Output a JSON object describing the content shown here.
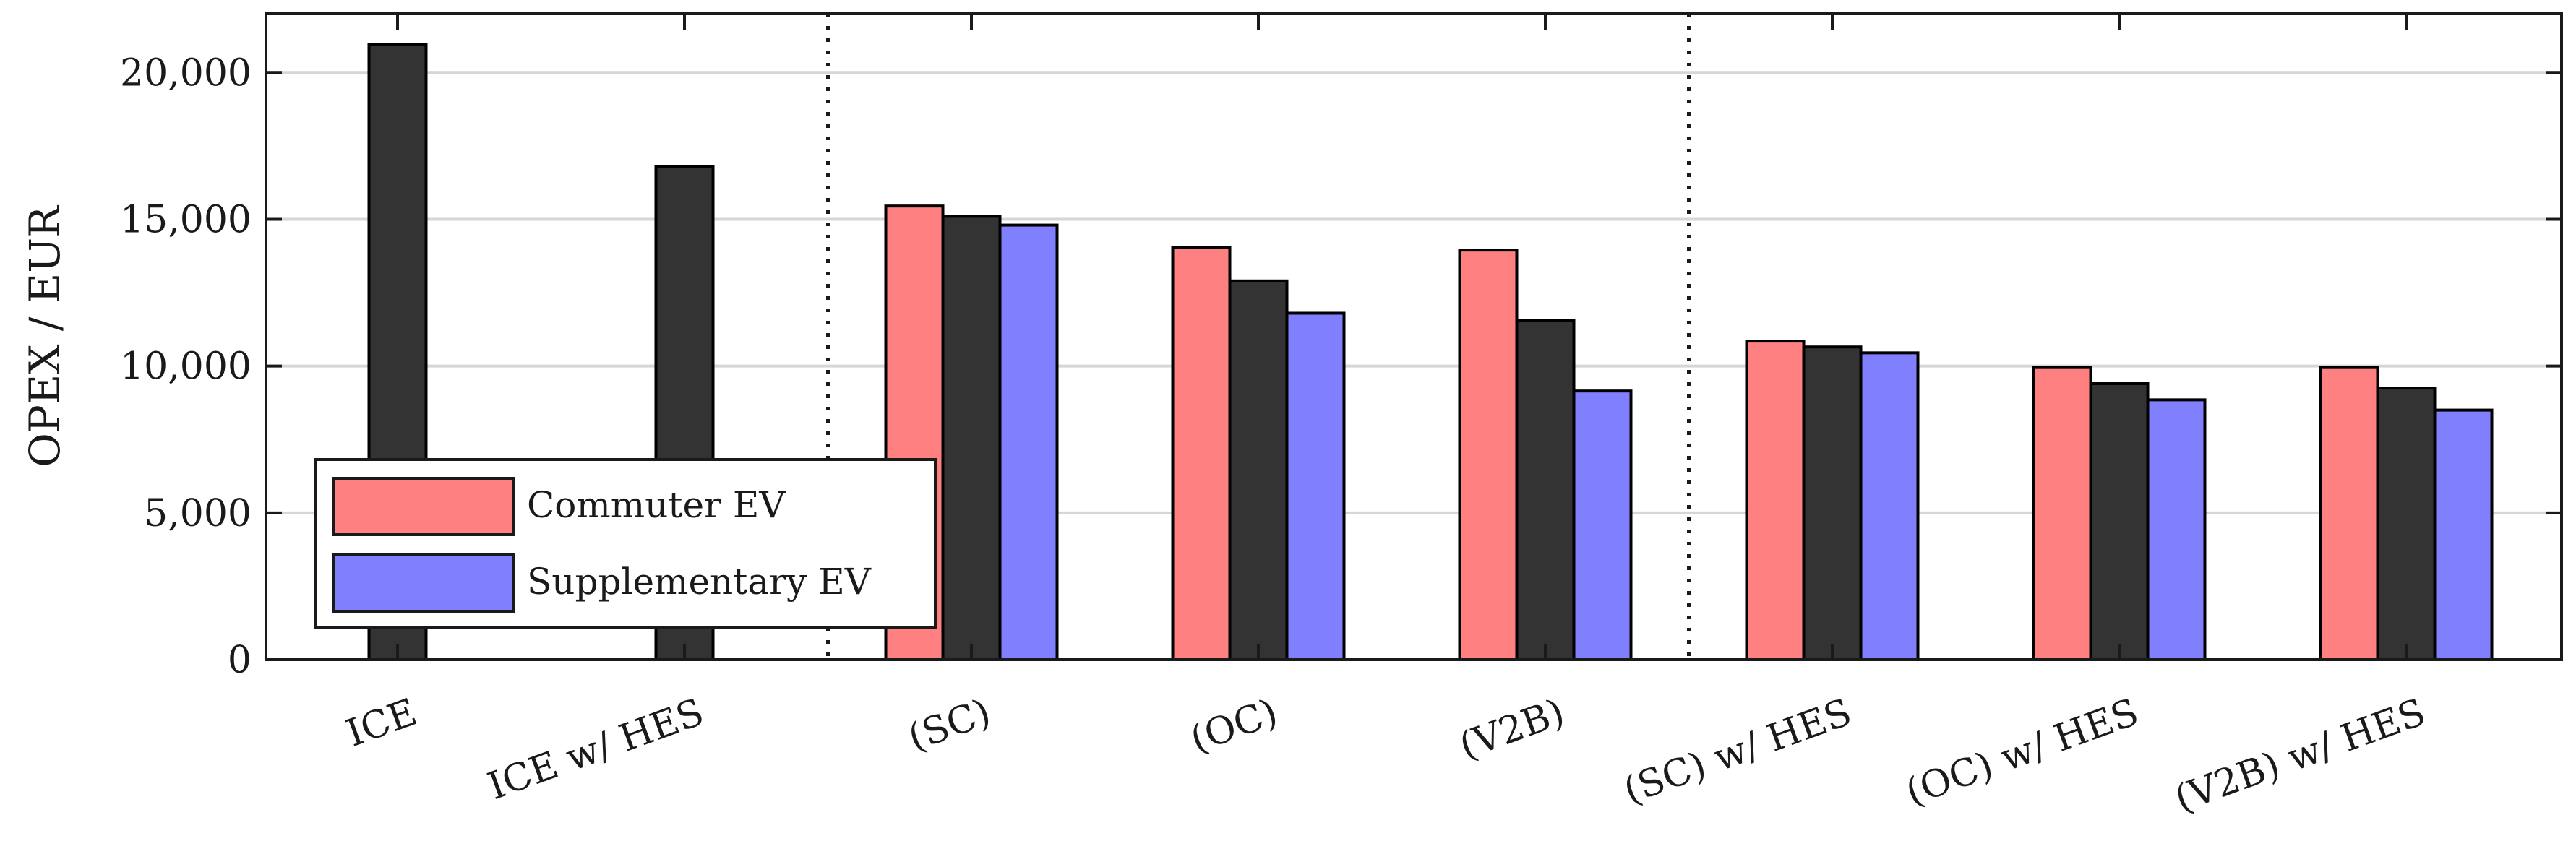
{
  "chart_data": {
    "type": "bar",
    "title": "",
    "xlabel": "",
    "ylabel": "OPEX / EUR",
    "ylim": [
      0,
      22000
    ],
    "yticks": [
      0,
      5000,
      10000,
      15000,
      20000
    ],
    "ytick_labels": [
      "0",
      "5,000",
      "10,000",
      "15,000",
      "20,000"
    ],
    "grid": "horizontal",
    "categories": [
      "ICE",
      "ICE w/ HES",
      "(SC)",
      "(OC)",
      "(V2B)",
      "(SC) w/ HES",
      "(OC) w/ HES",
      "(V2B) w/ HES"
    ],
    "series": [
      {
        "name": "Commuter EV",
        "color": "#ff8080",
        "values": [
          null,
          null,
          15450,
          14050,
          13950,
          10850,
          9950,
          9950
        ]
      },
      {
        "name": "",
        "color": "#333333",
        "values": [
          20950,
          16800,
          15100,
          12900,
          11550,
          10650,
          9400,
          9250
        ]
      },
      {
        "name": "Supplementary EV",
        "color": "#8080ff",
        "values": [
          null,
          null,
          14800,
          11800,
          9150,
          10450,
          8850,
          8500
        ]
      }
    ],
    "separators_after_category": [
      1,
      4
    ],
    "legend": {
      "position": "bottom-left",
      "entries": [
        "Commuter EV",
        "Supplementary EV"
      ]
    }
  }
}
